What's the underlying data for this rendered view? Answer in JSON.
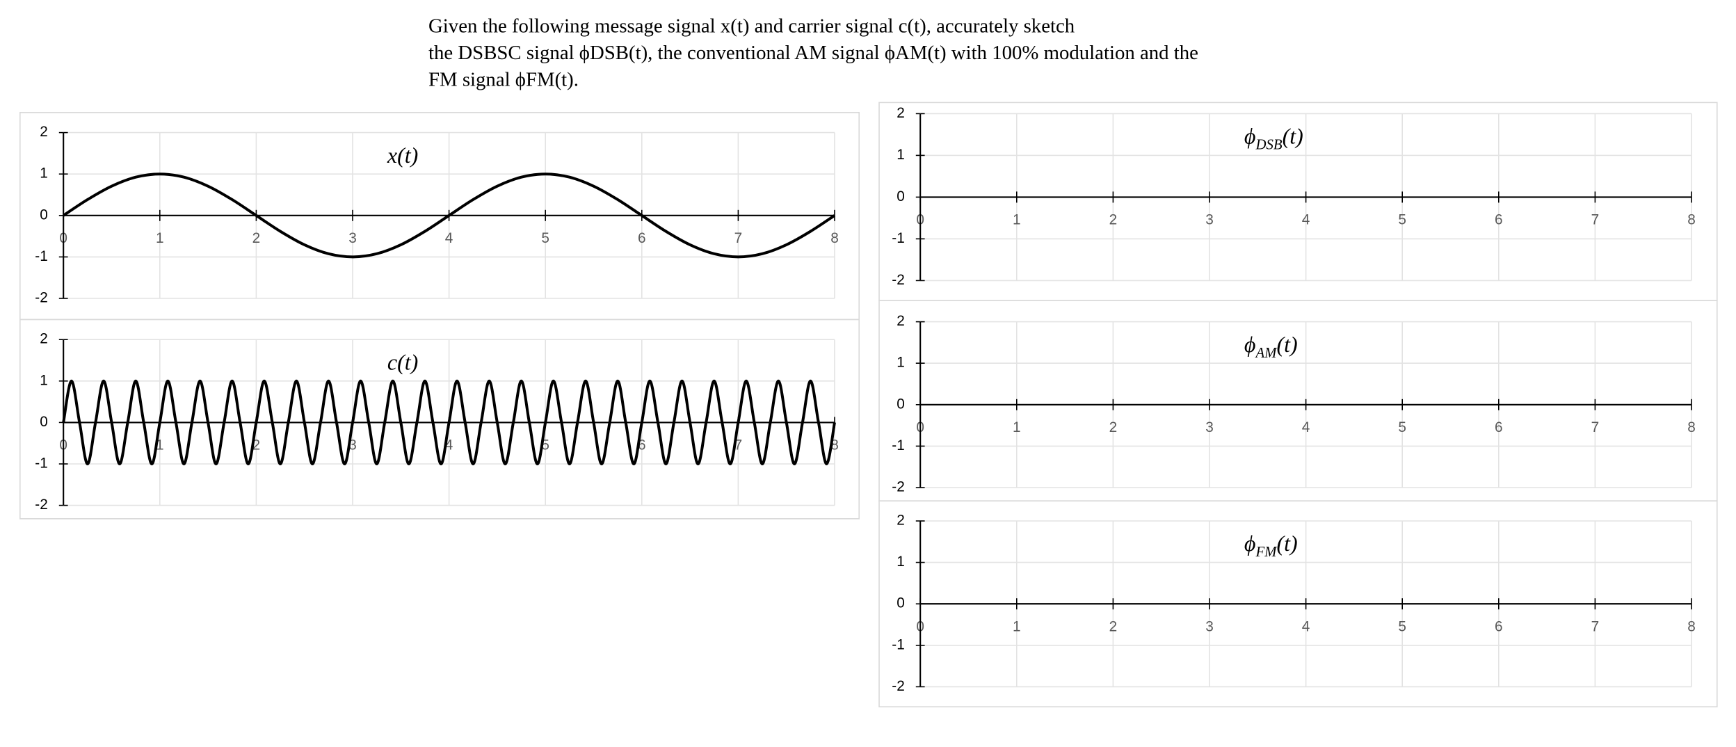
{
  "question": {
    "lines": [
      "Given the following message signal x(t) and carrier signal c(t), accurately sketch",
      "the DSBSC signal ϕDSB(t), the conventional AM signal ϕAM(t) with 100% modulation and the",
      "FM signal ϕFM(t)."
    ]
  },
  "chart_data": [
    {
      "type": "line",
      "title": "x",
      "title_suffix": "(t)",
      "xlim": [
        0,
        8
      ],
      "xticks": [
        0,
        1,
        2,
        3,
        4,
        5,
        6,
        7,
        8
      ],
      "ylim": [
        -2,
        2
      ],
      "yticks": [
        -2,
        -1,
        0,
        1,
        2
      ],
      "grid": true,
      "series": [
        {
          "color": "#000000",
          "x": [
            0,
            0.25,
            0.5,
            0.75,
            1,
            1.25,
            1.5,
            1.75,
            2,
            2.25,
            2.5,
            2.75,
            3,
            3.25,
            3.5,
            3.75,
            4,
            4.25,
            4.5,
            4.75,
            5,
            5.25,
            5.5,
            5.75,
            6,
            6.25,
            6.5,
            6.75,
            7,
            7.25,
            7.5,
            7.75,
            8
          ],
          "values": [
            0,
            0.383,
            0.707,
            0.924,
            1,
            0.924,
            0.707,
            0.383,
            0,
            -0.383,
            -0.707,
            -0.924,
            -1,
            -0.924,
            -0.707,
            -0.383,
            0,
            0.383,
            0.707,
            0.924,
            1,
            0.924,
            0.707,
            0.383,
            0,
            -0.383,
            -0.707,
            -0.924,
            -1,
            -0.924,
            -0.707,
            -0.383,
            0
          ]
        }
      ]
    },
    {
      "type": "line",
      "title": "c",
      "title_suffix": "(t)",
      "xlim": [
        0,
        8
      ],
      "xticks": [
        0,
        1,
        2,
        3,
        4,
        5,
        6,
        7,
        8
      ],
      "ylim": [
        -2,
        2
      ],
      "yticks": [
        -2,
        -1,
        0,
        1,
        2
      ],
      "grid": true,
      "series": [
        {
          "color": "#000000",
          "x": [
            0,
            0.083,
            0.167,
            0.25,
            0.333,
            0.417,
            0.5,
            0.583,
            0.667,
            0.75,
            0.833,
            0.917,
            1,
            1.083,
            1.167,
            1.25,
            1.333,
            1.417,
            1.5,
            1.583,
            1.667,
            1.75,
            1.833,
            1.917,
            2,
            2.083,
            2.167,
            2.25,
            2.333,
            2.417,
            2.5,
            2.583,
            2.667,
            2.75,
            2.833,
            2.917,
            3,
            3.083,
            3.167,
            3.25,
            3.333,
            3.417,
            3.5,
            3.583,
            3.667,
            3.75,
            3.833,
            3.917,
            4,
            4.083,
            4.167,
            4.25,
            4.333,
            4.417,
            4.5,
            4.583,
            4.667,
            4.75,
            4.833,
            4.917,
            5,
            5.083,
            5.167,
            5.25,
            5.333,
            5.417,
            5.5,
            5.583,
            5.667,
            5.75,
            5.833,
            5.917,
            6,
            6.083,
            6.167,
            6.25,
            6.333,
            6.417,
            6.5,
            6.583,
            6.667,
            6.75,
            6.833,
            6.917,
            7,
            7.083,
            7.167,
            7.25,
            7.333,
            7.417,
            7.5,
            7.583,
            7.667,
            7.75,
            7.833,
            7.917,
            8
          ],
          "values": [
            0,
            1,
            0,
            -1,
            0,
            1,
            0,
            -1,
            0,
            1,
            0,
            -1,
            0,
            1,
            0,
            -1,
            0,
            1,
            0,
            -1,
            0,
            1,
            0,
            -1,
            0,
            1,
            0,
            -1,
            0,
            1,
            0,
            -1,
            0,
            1,
            0,
            -1,
            0,
            1,
            0,
            -1,
            0,
            1,
            0,
            -1,
            0,
            1,
            0,
            -1,
            0,
            1,
            0,
            -1,
            0,
            1,
            0,
            -1,
            0,
            1,
            0,
            -1,
            0,
            1,
            0,
            -1,
            0,
            1,
            0,
            -1,
            0,
            1,
            0,
            -1,
            0,
            1,
            0,
            -1,
            0,
            1,
            0,
            -1,
            0,
            1,
            0,
            -1,
            0,
            1,
            0,
            -1,
            0,
            1,
            0,
            -1,
            0,
            1,
            0,
            -1,
            0
          ]
        }
      ]
    },
    {
      "type": "line",
      "title": "ϕ",
      "title_subscript": "DSB",
      "title_suffix": "(t)",
      "xlim": [
        0,
        8
      ],
      "xticks": [
        0,
        1,
        2,
        3,
        4,
        5,
        6,
        7,
        8
      ],
      "ylim": [
        -2,
        2
      ],
      "yticks": [
        -2,
        -1,
        0,
        1,
        2
      ],
      "grid": true,
      "series": []
    },
    {
      "type": "line",
      "title": "ϕ",
      "title_subscript": "AM",
      "title_suffix": "(t)",
      "xlim": [
        0,
        8
      ],
      "xticks": [
        0,
        1,
        2,
        3,
        4,
        5,
        6,
        7,
        8
      ],
      "ylim": [
        -2,
        2
      ],
      "yticks": [
        -2,
        -1,
        0,
        1,
        2
      ],
      "grid": true,
      "series": []
    },
    {
      "type": "line",
      "title": "ϕ",
      "title_subscript": "FM",
      "title_suffix": "(t)",
      "xlim": [
        0,
        8
      ],
      "xticks": [
        0,
        1,
        2,
        3,
        4,
        5,
        6,
        7,
        8
      ],
      "ylim": [
        -2,
        2
      ],
      "yticks": [
        -2,
        -1,
        0,
        1,
        2
      ],
      "grid": true,
      "series": []
    }
  ]
}
